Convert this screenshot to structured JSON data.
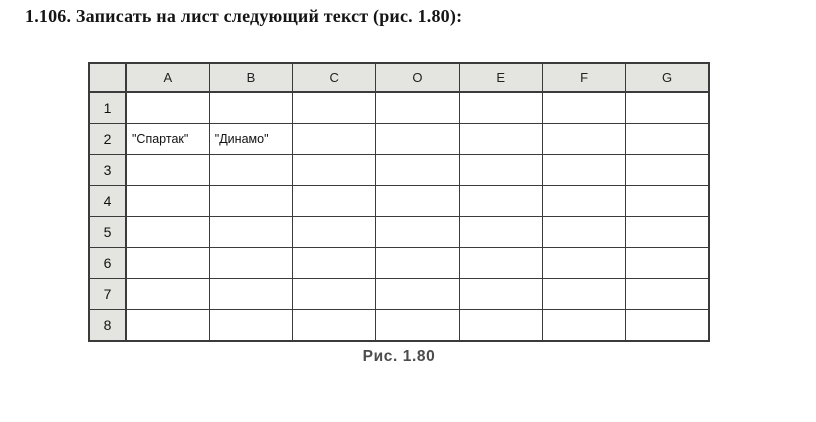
{
  "page": {
    "title": "1.106. Записать на лист следующий текст (рис. 1.80):",
    "caption": "Рис. 1.80"
  },
  "sheet": {
    "columns": [
      "A",
      "B",
      "C",
      "O",
      "E",
      "F",
      "G"
    ],
    "row_labels": [
      "1",
      "2",
      "3",
      "4",
      "5",
      "6",
      "7",
      "8"
    ],
    "cells": {
      "A2": "\"Спартак\"",
      "B2": "\"Динамо\""
    }
  },
  "colors": {
    "paper": "#ffffff",
    "text_color": "#151515",
    "grid_border": "#3b3b3b",
    "header_fill": "#e4e4e1",
    "caption_color": "#4c4c4c"
  }
}
